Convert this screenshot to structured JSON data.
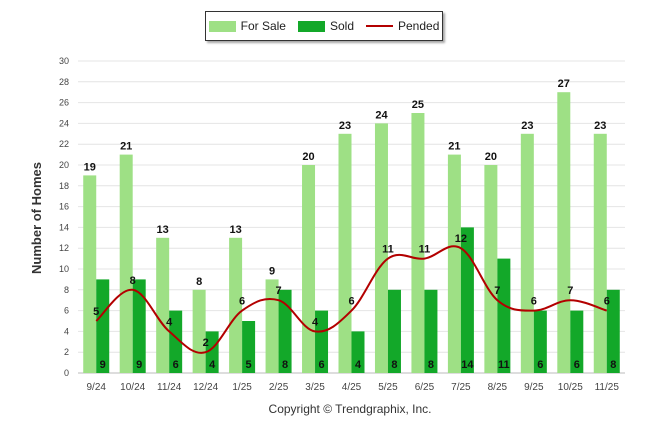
{
  "chart_data": {
    "type": "bar",
    "title": "",
    "xlabel": "",
    "ylabel": "Number of Homes",
    "ylim": [
      0,
      30
    ],
    "yticks": [
      0,
      2,
      4,
      6,
      8,
      10,
      12,
      14,
      16,
      18,
      20,
      22,
      24,
      26,
      28,
      30
    ],
    "categories": [
      "9/24",
      "10/24",
      "11/24",
      "12/24",
      "1/25",
      "2/25",
      "3/25",
      "4/25",
      "5/25",
      "6/25",
      "7/25",
      "8/25",
      "9/25",
      "10/25",
      "11/25"
    ],
    "series": [
      {
        "name": "For Sale",
        "type": "bar",
        "color": "#9ee085",
        "values": [
          19,
          21,
          13,
          8,
          13,
          9,
          20,
          23,
          24,
          25,
          21,
          20,
          23,
          27,
          23
        ]
      },
      {
        "name": "Sold",
        "type": "bar",
        "color": "#13a829",
        "values": [
          9,
          9,
          6,
          4,
          5,
          8,
          6,
          4,
          8,
          8,
          14,
          11,
          6,
          6,
          8
        ]
      },
      {
        "name": "Pended",
        "type": "line",
        "color": "#b30000",
        "values": [
          5,
          8,
          4,
          2,
          6,
          7,
          4,
          6,
          11,
          11,
          12,
          7,
          6,
          7,
          6
        ]
      }
    ],
    "grid": true,
    "legend_position": "top-center"
  },
  "footer": {
    "copyright": "Copyright © Trendgraphix, Inc."
  }
}
